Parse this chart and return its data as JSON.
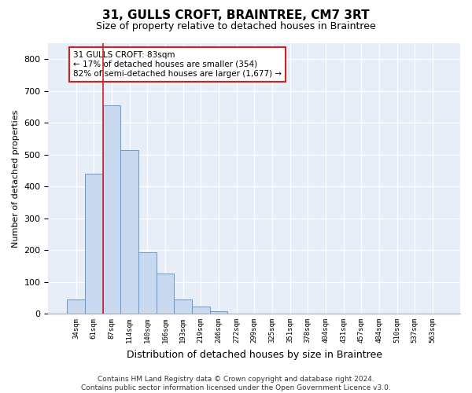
{
  "title": "31, GULLS CROFT, BRAINTREE, CM7 3RT",
  "subtitle": "Size of property relative to detached houses in Braintree",
  "xlabel": "Distribution of detached houses by size in Braintree",
  "ylabel": "Number of detached properties",
  "bar_labels": [
    "34sqm",
    "61sqm",
    "87sqm",
    "114sqm",
    "140sqm",
    "166sqm",
    "193sqm",
    "219sqm",
    "246sqm",
    "272sqm",
    "299sqm",
    "325sqm",
    "351sqm",
    "378sqm",
    "404sqm",
    "431sqm",
    "457sqm",
    "484sqm",
    "510sqm",
    "537sqm",
    "563sqm"
  ],
  "bar_values": [
    45,
    440,
    655,
    515,
    193,
    125,
    45,
    22,
    8,
    0,
    0,
    0,
    0,
    0,
    0,
    0,
    0,
    0,
    0,
    0,
    0
  ],
  "bar_color": "#c8d8ee",
  "bar_edge_color": "#6699cc",
  "highlight_bar_index": 2,
  "highlight_color": "#cc2222",
  "annotation_text": "31 GULLS CROFT: 83sqm\n← 17% of detached houses are smaller (354)\n82% of semi-detached houses are larger (1,677) →",
  "annotation_box_color": "white",
  "annotation_box_edge_color": "#cc2222",
  "ylim": [
    0,
    850
  ],
  "yticks": [
    0,
    100,
    200,
    300,
    400,
    500,
    600,
    700,
    800
  ],
  "background_color": "#ffffff",
  "plot_bg_color": "#e8eef8",
  "grid_color": "#ffffff",
  "footer": "Contains HM Land Registry data © Crown copyright and database right 2024.\nContains public sector information licensed under the Open Government Licence v3.0.",
  "title_fontsize": 11,
  "subtitle_fontsize": 9,
  "annotation_fontsize": 7.5,
  "footer_fontsize": 6.5,
  "ylabel_fontsize": 8,
  "xlabel_fontsize": 9
}
